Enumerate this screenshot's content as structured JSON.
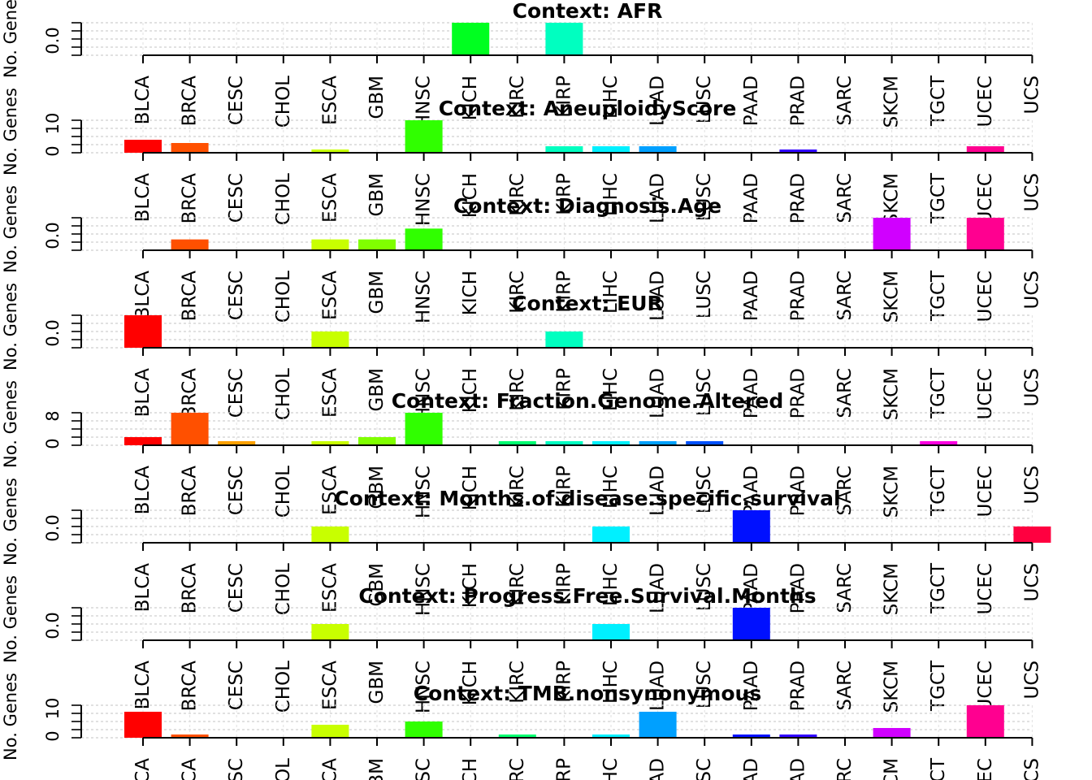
{
  "chart_data": {
    "type": "bar",
    "ylabel": "No. Genes",
    "categories": [
      "BLCA",
      "BRCA",
      "CESC",
      "CHOL",
      "ESCA",
      "GBM",
      "HNSC",
      "KICH",
      "KIRC",
      "KIRP",
      "LIHC",
      "LUAD",
      "LUSC",
      "PAAD",
      "PRAD",
      "SARC",
      "SKCM",
      "TGCT",
      "UCEC",
      "UCS"
    ],
    "bar_colors": [
      "#FF0000",
      "#FF5000",
      "#FFA000",
      "#FFF000",
      "#C8FF00",
      "#80FF00",
      "#30FF00",
      "#00FF20",
      "#00FF70",
      "#00FFC0",
      "#00F0FF",
      "#00A0FF",
      "#0050FF",
      "#0010FF",
      "#3000FF",
      "#8000FF",
      "#D000FF",
      "#FF00E0",
      "#FF0090",
      "#FF0040"
    ],
    "panels": [
      {
        "title": "Context: AFR",
        "ytick_labels": [
          "0.0"
        ],
        "ymax": 1,
        "values": [
          0,
          0,
          0,
          0,
          0,
          0,
          0,
          1,
          0,
          1,
          0,
          0,
          0,
          0,
          0,
          0,
          0,
          0,
          0,
          0
        ]
      },
      {
        "title": "Context: AneuploidyScore",
        "ytick_labels": [
          "0",
          "10"
        ],
        "ymax": 10,
        "values": [
          4,
          3,
          0,
          0,
          1,
          0,
          10,
          0,
          0,
          2,
          2,
          2,
          0,
          0,
          1,
          0,
          0,
          0,
          2,
          0
        ]
      },
      {
        "title": "Context: Diagnosis.Age",
        "ytick_labels": [
          "0.0"
        ],
        "ymax": 3,
        "values": [
          0,
          1,
          0,
          0,
          1,
          1,
          2,
          0,
          0,
          0,
          0,
          0,
          0,
          0,
          0,
          0,
          3,
          0,
          3,
          0
        ]
      },
      {
        "title": "Context: EUR",
        "ytick_labels": [
          "0.0"
        ],
        "ymax": 2,
        "values": [
          2,
          0,
          0,
          0,
          1,
          0,
          0,
          0,
          0,
          1,
          0,
          0,
          0,
          0,
          0,
          0,
          0,
          0,
          0,
          0
        ]
      },
      {
        "title": "Context: Fraction.Genome.Altered",
        "ytick_labels": [
          "0",
          "8"
        ],
        "ymax": 8,
        "values": [
          2,
          8,
          1,
          0,
          1,
          2,
          8,
          0,
          1,
          1,
          1,
          1,
          1,
          0,
          0,
          0,
          0,
          1,
          0,
          0
        ]
      },
      {
        "title": "Context: Months.of.disease.specific.survival",
        "ytick_labels": [
          "0.0"
        ],
        "ymax": 2,
        "values": [
          0,
          0,
          0,
          0,
          1,
          0,
          0,
          0,
          0,
          0,
          1,
          0,
          0,
          2,
          0,
          0,
          0,
          0,
          0,
          1
        ]
      },
      {
        "title": "Context: Progress.Free.Survival.Months",
        "ytick_labels": [
          "0.0"
        ],
        "ymax": 2,
        "values": [
          0,
          0,
          0,
          0,
          1,
          0,
          0,
          0,
          0,
          0,
          1,
          0,
          0,
          2,
          0,
          0,
          0,
          0,
          0,
          0
        ]
      },
      {
        "title": "Context: TMB.nonsynonymous",
        "ytick_labels": [
          "0",
          "10"
        ],
        "ymax": 10,
        "values": [
          8,
          1,
          0,
          0,
          4,
          0,
          5,
          0,
          1,
          0,
          1,
          8,
          0,
          1,
          1,
          0,
          3,
          0,
          10,
          0
        ]
      }
    ]
  }
}
